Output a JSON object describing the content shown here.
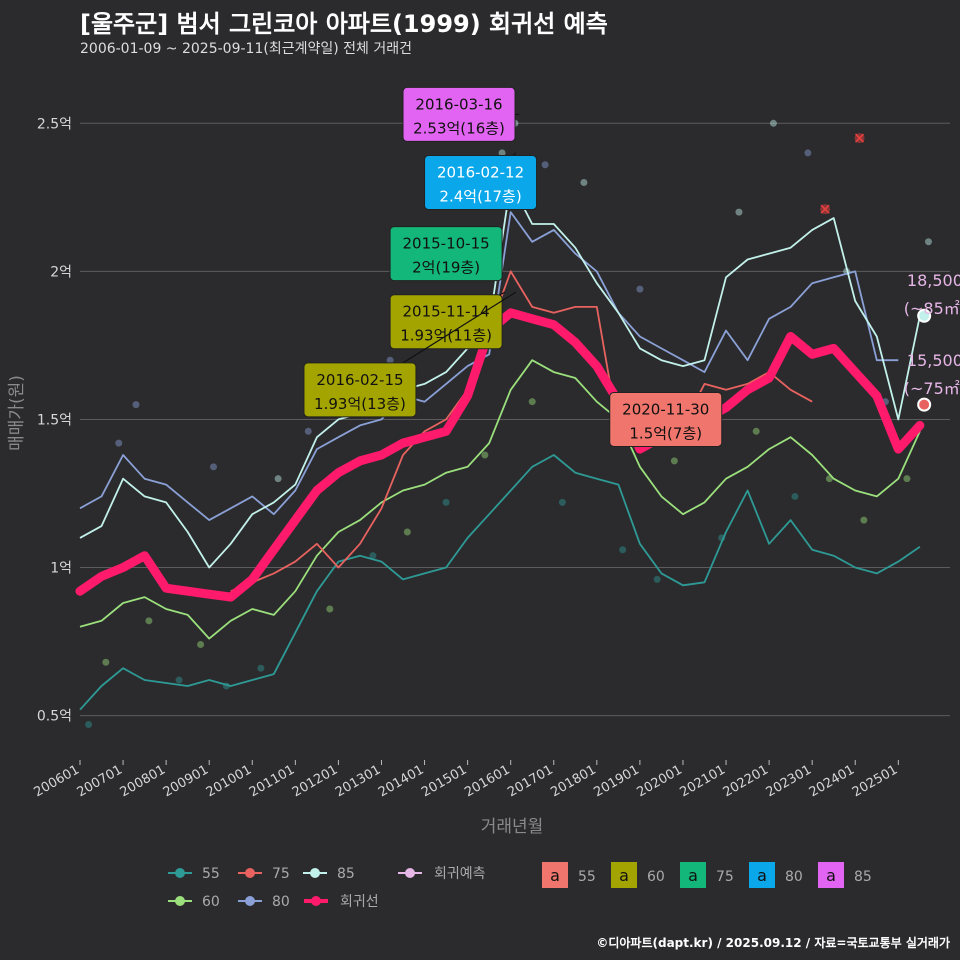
{
  "title": "[울주군] 범서 그린코아 아파트(1999) 회귀선 예측",
  "subtitle": "2006-01-09 ~ 2025-09-11(최근계약일) 전체 거래건",
  "source": "©디아파트(dapt.kr) / 2025.09.12 / 자료=국토교통부 실거래가",
  "chart_data": {
    "type": "line",
    "xlabel": "거래년월",
    "ylabel": "매매가(원)",
    "xlim": [
      2006.0,
      2026.2
    ],
    "ylim": [
      0.35,
      2.68
    ],
    "x_ticks": [
      2006,
      2007,
      2008,
      2009,
      2010,
      2011,
      2012,
      2013,
      2014,
      2015,
      2016,
      2017,
      2018,
      2019,
      2020,
      2021,
      2022,
      2023,
      2024,
      2025
    ],
    "x_tick_labels": [
      "200601",
      "200701",
      "200801",
      "200901",
      "201001",
      "201101",
      "201201",
      "201301",
      "201401",
      "201501",
      "201601",
      "201701",
      "201801",
      "201901",
      "202001",
      "202101",
      "202201",
      "202301",
      "202401",
      "202501"
    ],
    "y_ticks": [
      0.5,
      1.0,
      1.5,
      2.0,
      2.5
    ],
    "y_tick_labels": [
      "0.5억",
      "1억",
      "1.5억",
      "2억",
      "2.5억"
    ],
    "grid": true,
    "legend_position": "bottom",
    "series": [
      {
        "name": "55",
        "color": "#2e9a96",
        "x": [
          2006.0,
          2006.5,
          2007.0,
          2007.5,
          2008.0,
          2008.5,
          2009.0,
          2009.5,
          2010.0,
          2010.5,
          2011.0,
          2011.5,
          2012.0,
          2012.5,
          2013.0,
          2013.5,
          2014.0,
          2014.5,
          2015.0,
          2015.5,
          2016.0,
          2016.5,
          2017.0,
          2017.5,
          2018.0,
          2018.5,
          2019.0,
          2019.5,
          2020.0,
          2020.5,
          2021.0,
          2021.5,
          2022.0,
          2022.5,
          2023.0,
          2023.5,
          2024.0,
          2024.5,
          2025.0,
          2025.5
        ],
        "y": [
          0.52,
          0.6,
          0.66,
          0.62,
          0.61,
          0.6,
          0.62,
          0.6,
          0.62,
          0.64,
          0.78,
          0.92,
          1.02,
          1.04,
          1.02,
          0.96,
          0.98,
          1.0,
          1.1,
          1.18,
          1.26,
          1.34,
          1.38,
          1.32,
          1.3,
          1.28,
          1.08,
          0.98,
          0.94,
          0.95,
          1.12,
          1.26,
          1.08,
          1.16,
          1.06,
          1.04,
          1.0,
          0.98,
          1.02,
          1.07
        ]
      },
      {
        "name": "60",
        "color": "#9be07c",
        "x": [
          2006.0,
          2006.5,
          2007.0,
          2007.5,
          2008.0,
          2008.5,
          2009.0,
          2009.5,
          2010.0,
          2010.5,
          2011.0,
          2011.5,
          2012.0,
          2012.5,
          2013.0,
          2013.5,
          2014.0,
          2014.5,
          2015.0,
          2015.5,
          2016.0,
          2016.5,
          2017.0,
          2017.5,
          2018.0,
          2018.5,
          2019.0,
          2019.5,
          2020.0,
          2020.5,
          2021.0,
          2021.5,
          2022.0,
          2022.5,
          2023.0,
          2023.5,
          2024.0,
          2024.5,
          2025.0,
          2025.5
        ],
        "y": [
          0.8,
          0.82,
          0.88,
          0.9,
          0.86,
          0.84,
          0.76,
          0.82,
          0.86,
          0.84,
          0.92,
          1.04,
          1.12,
          1.16,
          1.22,
          1.26,
          1.28,
          1.32,
          1.34,
          1.42,
          1.6,
          1.7,
          1.66,
          1.64,
          1.56,
          1.5,
          1.34,
          1.24,
          1.18,
          1.22,
          1.3,
          1.34,
          1.4,
          1.44,
          1.38,
          1.3,
          1.26,
          1.24,
          1.3,
          1.46
        ]
      },
      {
        "name": "75",
        "color": "#e8625f",
        "x": [
          2009.5,
          2010.0,
          2010.5,
          2011.0,
          2011.5,
          2012.0,
          2012.5,
          2013.0,
          2013.5,
          2014.0,
          2014.5,
          2015.0,
          2015.5,
          2016.0,
          2016.5,
          2017.0,
          2017.5,
          2018.0,
          2018.5,
          2019.0,
          2019.5,
          2020.0,
          2020.5,
          2021.0,
          2021.5,
          2022.0,
          2022.5,
          2023.0
        ],
        "y": [
          0.92,
          0.95,
          0.98,
          1.02,
          1.08,
          1.0,
          1.08,
          1.2,
          1.38,
          1.46,
          1.5,
          1.6,
          1.8,
          2.0,
          1.88,
          1.86,
          1.88,
          1.88,
          1.46,
          1.44,
          1.42,
          1.48,
          1.62,
          1.6,
          1.62,
          1.66,
          1.6,
          1.56
        ]
      },
      {
        "name": "80",
        "color": "#8aa0d6",
        "x": [
          2006.0,
          2006.5,
          2007.0,
          2007.5,
          2008.0,
          2008.5,
          2009.0,
          2009.5,
          2010.0,
          2010.5,
          2011.0,
          2011.5,
          2012.0,
          2012.5,
          2013.0,
          2013.5,
          2014.0,
          2014.5,
          2015.0,
          2015.5,
          2016.0,
          2016.5,
          2017.0,
          2017.5,
          2018.0,
          2018.5,
          2019.0,
          2019.5,
          2020.0,
          2020.5,
          2021.0,
          2021.5,
          2022.0,
          2022.5,
          2023.0,
          2023.5,
          2024.0,
          2024.5,
          2025.0
        ],
        "y": [
          1.2,
          1.24,
          1.38,
          1.3,
          1.28,
          1.22,
          1.16,
          1.2,
          1.24,
          1.18,
          1.26,
          1.4,
          1.44,
          1.48,
          1.5,
          1.58,
          1.56,
          1.62,
          1.68,
          1.72,
          2.2,
          2.1,
          2.14,
          2.06,
          2.0,
          1.86,
          1.78,
          1.74,
          1.7,
          1.66,
          1.8,
          1.7,
          1.84,
          1.88,
          1.96,
          1.98,
          2.0,
          1.7,
          1.7
        ]
      },
      {
        "name": "85",
        "color": "#c2f0ea",
        "x": [
          2006.0,
          2006.5,
          2007.0,
          2007.5,
          2008.0,
          2008.5,
          2009.0,
          2009.5,
          2010.0,
          2010.5,
          2011.0,
          2011.5,
          2012.0,
          2012.5,
          2013.0,
          2013.5,
          2014.0,
          2014.5,
          2015.0,
          2015.5,
          2016.0,
          2016.5,
          2017.0,
          2017.5,
          2018.0,
          2018.5,
          2019.0,
          2019.5,
          2020.0,
          2020.5,
          2021.0,
          2021.5,
          2022.0,
          2022.5,
          2023.0,
          2023.5,
          2024.0,
          2024.5,
          2025.0,
          2025.5
        ],
        "y": [
          1.1,
          1.14,
          1.3,
          1.24,
          1.22,
          1.12,
          1.0,
          1.08,
          1.18,
          1.22,
          1.28,
          1.44,
          1.5,
          1.52,
          1.54,
          1.6,
          1.62,
          1.66,
          1.74,
          1.82,
          2.3,
          2.16,
          2.16,
          2.08,
          1.96,
          1.86,
          1.74,
          1.7,
          1.68,
          1.7,
          1.98,
          2.04,
          2.06,
          2.08,
          2.14,
          2.18,
          1.9,
          1.78,
          1.5,
          1.85
        ]
      }
    ],
    "trend": {
      "name": "회귀선",
      "color": "#ff1a6c",
      "x": [
        2006.0,
        2006.5,
        2007.0,
        2007.5,
        2008.0,
        2008.5,
        2009.0,
        2009.5,
        2010.0,
        2010.5,
        2011.0,
        2011.5,
        2012.0,
        2012.5,
        2013.0,
        2013.5,
        2014.0,
        2014.5,
        2015.0,
        2015.5,
        2016.0,
        2016.5,
        2017.0,
        2017.5,
        2018.0,
        2018.5,
        2019.0,
        2019.5,
        2020.0,
        2020.5,
        2021.0,
        2021.5,
        2022.0,
        2022.5,
        2023.0,
        2023.5,
        2024.0,
        2024.5,
        2025.0,
        2025.5
      ],
      "y": [
        0.92,
        0.97,
        1.0,
        1.04,
        0.93,
        0.92,
        0.91,
        0.9,
        0.96,
        1.06,
        1.16,
        1.26,
        1.32,
        1.36,
        1.38,
        1.42,
        1.44,
        1.46,
        1.58,
        1.8,
        1.86,
        1.84,
        1.82,
        1.76,
        1.68,
        1.56,
        1.4,
        1.44,
        1.48,
        1.5,
        1.54,
        1.6,
        1.64,
        1.78,
        1.72,
        1.74,
        1.66,
        1.58,
        1.4,
        1.48
      ]
    },
    "scatter_markers": [
      {
        "x": 2006.2,
        "y": 0.47,
        "c": "#2e9a96"
      },
      {
        "x": 2006.6,
        "y": 0.68,
        "c": "#9be07c"
      },
      {
        "x": 2006.9,
        "y": 1.42,
        "c": "#8aa0d6"
      },
      {
        "x": 2007.3,
        "y": 1.55,
        "c": "#8aa0d6"
      },
      {
        "x": 2007.6,
        "y": 0.82,
        "c": "#9be07c"
      },
      {
        "x": 2008.3,
        "y": 0.62,
        "c": "#2e9a96"
      },
      {
        "x": 2008.8,
        "y": 0.74,
        "c": "#9be07c"
      },
      {
        "x": 2009.1,
        "y": 1.34,
        "c": "#8aa0d6"
      },
      {
        "x": 2009.4,
        "y": 0.6,
        "c": "#2e9a96"
      },
      {
        "x": 2010.2,
        "y": 0.66,
        "c": "#2e9a96"
      },
      {
        "x": 2010.6,
        "y": 1.3,
        "c": "#c2f0ea"
      },
      {
        "x": 2011.3,
        "y": 1.46,
        "c": "#8aa0d6"
      },
      {
        "x": 2011.8,
        "y": 0.86,
        "c": "#9be07c"
      },
      {
        "x": 2012.4,
        "y": 1.6,
        "c": "#c2f0ea"
      },
      {
        "x": 2012.8,
        "y": 1.04,
        "c": "#2e9a96"
      },
      {
        "x": 2013.2,
        "y": 1.7,
        "c": "#8aa0d6"
      },
      {
        "x": 2013.6,
        "y": 1.12,
        "c": "#9be07c"
      },
      {
        "x": 2014.1,
        "y": 1.84,
        "c": "#c2f0ea"
      },
      {
        "x": 2014.5,
        "y": 1.22,
        "c": "#2e9a96"
      },
      {
        "x": 2015.0,
        "y": 1.9,
        "c": "#8aa0d6"
      },
      {
        "x": 2015.4,
        "y": 1.38,
        "c": "#9be07c"
      },
      {
        "x": 2015.8,
        "y": 2.4,
        "c": "#c2f0ea"
      },
      {
        "x": 2016.1,
        "y": 2.5,
        "c": "#c2f0ea"
      },
      {
        "x": 2016.5,
        "y": 1.56,
        "c": "#9be07c"
      },
      {
        "x": 2016.8,
        "y": 2.36,
        "c": "#8aa0d6"
      },
      {
        "x": 2017.2,
        "y": 1.22,
        "c": "#2e9a96"
      },
      {
        "x": 2017.7,
        "y": 2.3,
        "c": "#c2f0ea"
      },
      {
        "x": 2018.2,
        "y": 1.64,
        "c": "#9be07c"
      },
      {
        "x": 2018.6,
        "y": 1.06,
        "c": "#2e9a96"
      },
      {
        "x": 2019.0,
        "y": 1.94,
        "c": "#8aa0d6"
      },
      {
        "x": 2019.4,
        "y": 0.96,
        "c": "#2e9a96"
      },
      {
        "x": 2019.8,
        "y": 1.36,
        "c": "#9be07c"
      },
      {
        "x": 2020.4,
        "y": 1.58,
        "c": "#c2f0ea"
      },
      {
        "x": 2020.9,
        "y": 1.1,
        "c": "#2e9a96"
      },
      {
        "x": 2021.3,
        "y": 2.2,
        "c": "#c2f0ea"
      },
      {
        "x": 2021.7,
        "y": 1.46,
        "c": "#9be07c"
      },
      {
        "x": 2022.1,
        "y": 2.5,
        "c": "#c2f0ea"
      },
      {
        "x": 2022.6,
        "y": 1.24,
        "c": "#2e9a96"
      },
      {
        "x": 2022.9,
        "y": 2.4,
        "c": "#8aa0d6"
      },
      {
        "x": 2023.4,
        "y": 1.3,
        "c": "#9be07c"
      },
      {
        "x": 2023.8,
        "y": 2.0,
        "c": "#c2f0ea"
      },
      {
        "x": 2024.2,
        "y": 1.16,
        "c": "#9be07c"
      },
      {
        "x": 2024.7,
        "y": 1.56,
        "c": "#8aa0d6"
      },
      {
        "x": 2025.2,
        "y": 1.3,
        "c": "#9be07c"
      },
      {
        "x": 2025.7,
        "y": 2.1,
        "c": "#c2f0ea"
      }
    ],
    "x_markers": [
      {
        "x": 2023.3,
        "y": 2.21
      },
      {
        "x": 2024.1,
        "y": 2.45
      }
    ],
    "forecast_points": [
      {
        "x": 2025.6,
        "y": 1.85,
        "color": "#c2f0ea"
      },
      {
        "x": 2025.6,
        "y": 1.55,
        "color": "#e8625f"
      }
    ],
    "forecast_labels": [
      {
        "x": 2025.85,
        "y": 1.95,
        "value": "18,500",
        "unit": "(~85㎡)"
      },
      {
        "x": 2025.85,
        "y": 1.68,
        "value": "15,500",
        "unit": "(~75㎡)"
      }
    ],
    "annotations": [
      {
        "date": "2016-03-16",
        "price": "2.53억(16층)",
        "x": 2016.2,
        "y": 2.53,
        "lx": 2013.5,
        "ly": 2.53,
        "bg": "#e264f2",
        "fg": "#111111"
      },
      {
        "date": "2016-02-12",
        "price": "2.4억(17층)",
        "x": 2016.12,
        "y": 2.4,
        "lx": 2014.0,
        "ly": 2.3,
        "bg": "#0aa8ea",
        "fg": "#ffffff"
      },
      {
        "date": "2015-10-15",
        "price": "2억(19층)",
        "x": 2015.8,
        "y": 2.0,
        "lx": 2013.2,
        "ly": 2.06,
        "bg": "#13b77a",
        "fg": "#111111"
      },
      {
        "date": "2015-11-14",
        "price": "1.93억(11층)",
        "x": 2015.87,
        "y": 1.93,
        "lx": 2013.2,
        "ly": 1.83,
        "bg": "#a4a400",
        "fg": "#111111"
      },
      {
        "date": "2016-02-15",
        "price": "1.93억(13층)",
        "x": 2016.12,
        "y": 1.93,
        "lx": 2011.2,
        "ly": 1.6,
        "bg": "#a4a400",
        "fg": "#111111"
      },
      {
        "date": "2020-11-30",
        "price": "1.5억(7층)",
        "x": 2020.9,
        "y": 1.5,
        "lx": 2018.3,
        "ly": 1.5,
        "bg": "#f0756d",
        "fg": "#111111"
      }
    ],
    "legend": {
      "line_items": [
        {
          "label": "55",
          "color": "#2e9a96"
        },
        {
          "label": "75",
          "color": "#e8625f"
        },
        {
          "label": "85",
          "color": "#c2f0ea"
        },
        {
          "label": "60",
          "color": "#9be07c"
        },
        {
          "label": "80",
          "color": "#8aa0d6"
        }
      ],
      "forecast_label": "회귀예측",
      "forecast_color": "#e6b6e6",
      "trend_label": "회귀선",
      "trend_color": "#ff1a6c",
      "box_glyph": "a",
      "box_items": [
        {
          "label": "55",
          "color": "#f0756d"
        },
        {
          "label": "60",
          "color": "#a4a400"
        },
        {
          "label": "75",
          "color": "#13b77a"
        },
        {
          "label": "80",
          "color": "#0aa8ea"
        },
        {
          "label": "85",
          "color": "#e264f2"
        }
      ]
    }
  }
}
